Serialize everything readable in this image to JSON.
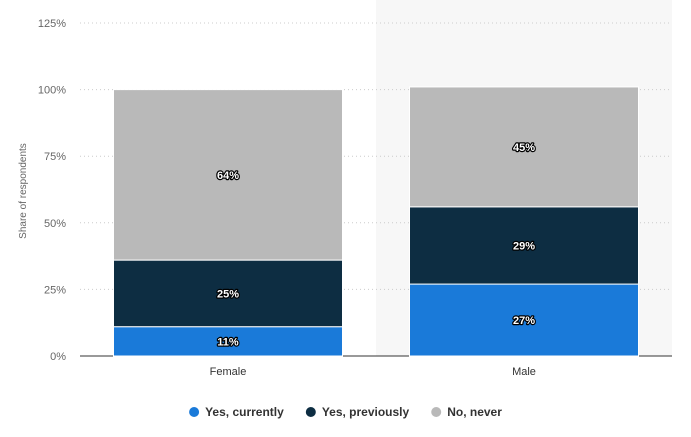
{
  "chart_data": {
    "type": "bar",
    "stacked": true,
    "categories": [
      "Female",
      "Male"
    ],
    "series": [
      {
        "name": "Yes, currently",
        "values": [
          11,
          27
        ],
        "labels": [
          "11%",
          "27%"
        ],
        "color": "#1a7ad9"
      },
      {
        "name": "Yes, previously",
        "values": [
          25,
          29
        ],
        "labels": [
          "25%",
          "29%"
        ],
        "color": "#0d2d42"
      },
      {
        "name": "No, never",
        "values": [
          64,
          45
        ],
        "labels": [
          "64%",
          "45%"
        ],
        "color": "#b9b9b9"
      }
    ],
    "ylabel": "Share of respondents",
    "xlabel": "",
    "ylim": [
      0,
      125
    ],
    "yticks": [
      0,
      25,
      50,
      75,
      100,
      125
    ],
    "ytick_labels": [
      "0%",
      "25%",
      "50%",
      "75%",
      "100%",
      "125%"
    ],
    "grid": true,
    "highlight_category": "Male",
    "highlight_color": "#f7f7f7",
    "legend": "bottom-center"
  }
}
